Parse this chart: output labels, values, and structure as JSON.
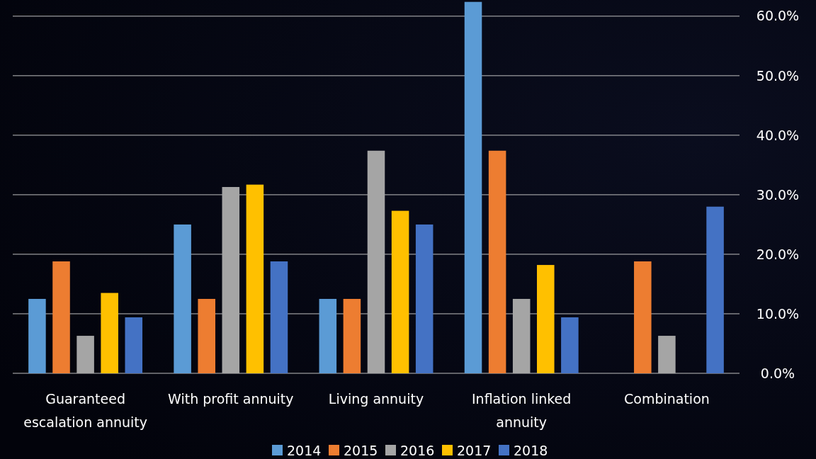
{
  "chart_data": {
    "type": "bar",
    "categories": [
      "Guaranteed escalation annuity",
      "With profit annuity",
      "Living annuity",
      "Inflation linked annuity",
      "Combination"
    ],
    "series": [
      {
        "name": "2014",
        "color": "#5b9bd5",
        "values": [
          12.5,
          25,
          12.5,
          62.4,
          null
        ]
      },
      {
        "name": "2015",
        "color": "#ed7d31",
        "values": [
          18.8,
          12.5,
          12.5,
          37.4,
          18.8
        ]
      },
      {
        "name": "2016",
        "color": "#a5a5a5",
        "values": [
          6.3,
          31.3,
          37.4,
          12.5,
          6.3
        ]
      },
      {
        "name": "2017",
        "color": "#ffc000",
        "values": [
          13.5,
          31.7,
          27.3,
          18.2,
          null
        ]
      },
      {
        "name": "2018",
        "color": "#4472c4",
        "values": [
          9.4,
          18.8,
          25,
          9.4,
          28
        ]
      }
    ],
    "ylim": [
      0,
      62.6
    ],
    "yticks": [
      {
        "value": 0,
        "label": "0.0%"
      },
      {
        "value": 10,
        "label": "10.0%"
      },
      {
        "value": 20,
        "label": "20.0%"
      },
      {
        "value": 30,
        "label": "30.0%"
      },
      {
        "value": 40,
        "label": "40.0%"
      },
      {
        "value": 50,
        "label": "50.0%"
      },
      {
        "value": 60,
        "label": "60.0%"
      }
    ],
    "grid": "y",
    "legend": "bottom"
  }
}
